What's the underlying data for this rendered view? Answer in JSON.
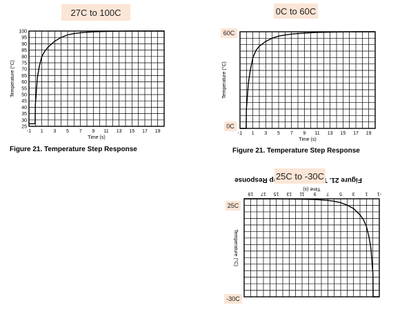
{
  "chart_data": [
    {
      "type": "line",
      "title": "27C to 100C",
      "caption": "Figure 21.  Temperature Step Response",
      "xlabel": "Time (s)",
      "ylabel": "Temperature (°C)",
      "xlim": [
        -1,
        20
      ],
      "ylim": [
        25,
        100
      ],
      "x_ticks": [
        "-1",
        "1",
        "3",
        "5",
        "7",
        "9",
        "11",
        "13",
        "15",
        "17",
        "19"
      ],
      "y_ticks": [
        "25",
        "30",
        "35",
        "40",
        "45",
        "50",
        "55",
        "60",
        "65",
        "70",
        "75",
        "80",
        "85",
        "90",
        "95",
        "100"
      ],
      "grid": true,
      "series": [
        {
          "x": [
            -1,
            -0.05,
            0,
            0.3,
            0.6,
            1,
            1.5,
            2,
            3,
            4,
            5,
            6,
            7,
            9,
            11,
            13,
            15,
            17,
            20
          ],
          "y": [
            27,
            27,
            42,
            63,
            72,
            80,
            84.5,
            87.5,
            92,
            95,
            97,
            98,
            98.7,
            99.4,
            99.7,
            99.9,
            100,
            100,
            100
          ]
        }
      ]
    },
    {
      "type": "line",
      "title": "0C to 60C",
      "caption": "Figure 21.  Temperature Step Response",
      "xlabel": "Time (s)",
      "ylabel": "Temperature (°C)",
      "xlim": [
        -1,
        20
      ],
      "ylim": [
        0,
        60
      ],
      "x_ticks": [
        "-1",
        "1",
        "3",
        "5",
        "7",
        "9",
        "11",
        "13",
        "15",
        "17",
        "19"
      ],
      "y_ticks": [
        "0C",
        "60C"
      ],
      "grid": true,
      "series": [
        {
          "x": [
            -1,
            -0.05,
            0,
            0.3,
            0.6,
            1,
            1.5,
            2,
            3,
            4,
            5,
            6,
            7,
            9,
            11,
            13,
            15,
            17,
            20
          ],
          "y": [
            0,
            0,
            12,
            28,
            36,
            44,
            48.5,
            51,
            54,
            56,
            57.3,
            58,
            58.6,
            59.2,
            59.6,
            59.8,
            59.9,
            60,
            60
          ]
        }
      ]
    },
    {
      "type": "line",
      "title": "25C to -30C",
      "caption": "Figure 21.  Temperature Step Response",
      "xlabel": "Time (s)",
      "ylabel": "Temperature (°C)",
      "xlim": [
        -1,
        20
      ],
      "ylim": [
        -30,
        25
      ],
      "x_ticks": [
        "-1",
        "1",
        "3",
        "5",
        "7",
        "9",
        "11",
        "13",
        "15",
        "17",
        "19"
      ],
      "y_ticks": [
        "-30C",
        "25C"
      ],
      "grid": true,
      "flipped": true,
      "series": [
        {
          "x": [
            -1,
            -0.05,
            0,
            0.3,
            0.6,
            1,
            1.5,
            2,
            3,
            4,
            5,
            6,
            7,
            9,
            11,
            13,
            15,
            17,
            20
          ],
          "y": [
            25,
            25,
            12,
            -2,
            -8.5,
            -14.5,
            -18.5,
            -21,
            -24.5,
            -26.5,
            -27.8,
            -28.6,
            -29.1,
            -29.6,
            -29.8,
            -29.9,
            -30,
            -30,
            -30
          ]
        }
      ]
    }
  ]
}
